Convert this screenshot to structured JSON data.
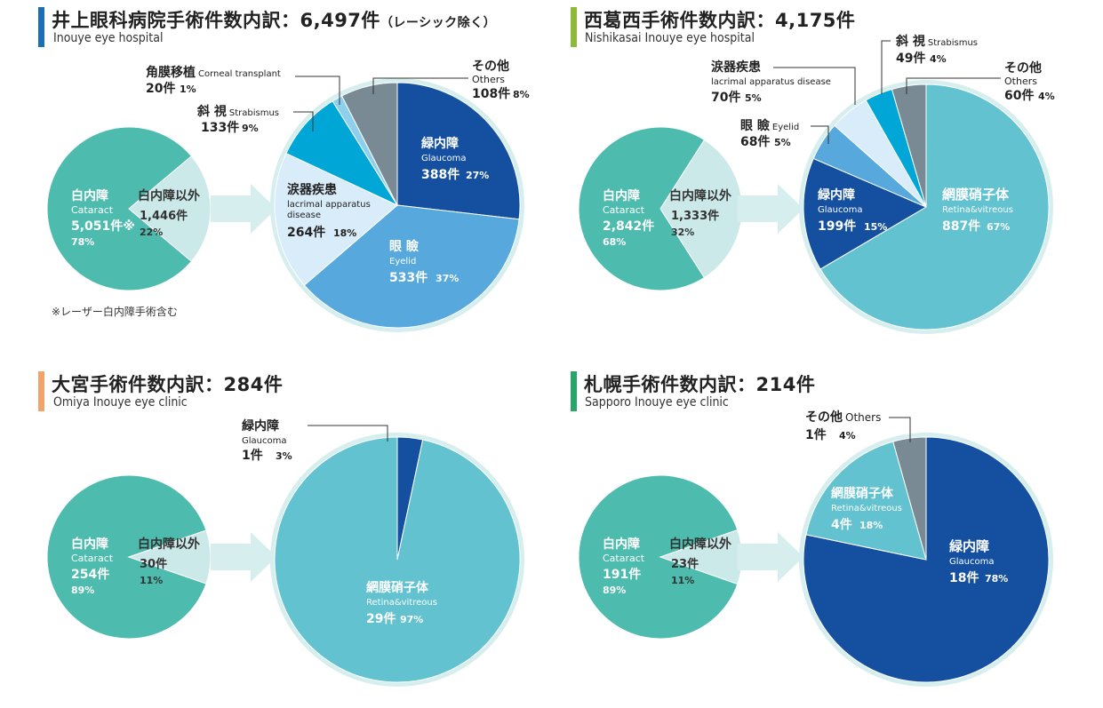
{
  "colors": {
    "cataract": "#4dbbad",
    "other_small": "#cbe9e9",
    "arrow": "#d6eeee",
    "ring": "#d6eeee",
    "glaucoma": "#1550a0",
    "eyelid": "#56a8dd",
    "lacrimal": "#d9ecfa",
    "strabismus": "#00a7d6",
    "cornea": "#8dd0ee",
    "others": "#7a8a94",
    "retina": "#62c2cf",
    "bar_inouye": "#1a6fb5",
    "bar_nishikasai": "#8dba3a",
    "bar_omiya": "#f2a36b",
    "bar_sapporo": "#2aa46a"
  },
  "panels": [
    {
      "title": "井上眼科病院手術件数内訳：6,497件",
      "title_suffix": "（レーシック除く）",
      "subtitle": "Inouye eye hospital",
      "note": "※レーザー白内障手術含む",
      "small_pie": {
        "cataract": {
          "jp": "白内障",
          "en": "Cataract",
          "count": "5,051件※",
          "pct": "78%"
        },
        "non_cataract": {
          "jp": "白内障以外",
          "count": "1,446件",
          "pct": "22%"
        }
      }
    },
    {
      "title": "西葛西手術件数内訳：4,175件",
      "title_suffix": "",
      "subtitle": "Nishikasai Inouye eye hospital",
      "note": "",
      "small_pie": {
        "cataract": {
          "jp": "白内障",
          "en": "Cataract",
          "count": "2,842件",
          "pct": "68%"
        },
        "non_cataract": {
          "jp": "白内障以外",
          "count": "1,333件",
          "pct": "32%"
        }
      }
    },
    {
      "title": "大宮手術件数内訳：284件",
      "title_suffix": "",
      "subtitle": "Omiya Inouye eye clinic",
      "note": "",
      "small_pie": {
        "cataract": {
          "jp": "白内障",
          "en": "Cataract",
          "count": "254件",
          "pct": "89%"
        },
        "non_cataract": {
          "jp": "白内障以外",
          "count": "30件",
          "pct": "11%"
        }
      }
    },
    {
      "title": "札幌手術件数内訳：214件",
      "title_suffix": "",
      "subtitle": "Sapporo Inouye eye clinic",
      "note": "",
      "small_pie": {
        "cataract": {
          "jp": "白内障",
          "en": "Cataract",
          "count": "191件",
          "pct": "89%"
        },
        "non_cataract": {
          "jp": "白内障以外",
          "count": "23件",
          "pct": "11%"
        }
      }
    }
  ],
  "chart_data": [
    {
      "type": "pie",
      "title": "井上眼科病院手術件数内訳：6,497件（レーシック除く）",
      "subtitle": "Inouye eye hospital",
      "cataract_split": [
        {
          "label": "白内障 Cataract",
          "value": 5051,
          "percent": 78
        },
        {
          "label": "白内障以外",
          "value": 1446,
          "percent": 22
        }
      ],
      "breakdown": [
        {
          "jp": "緑内障",
          "en": "Glaucoma",
          "value": 388,
          "count": "388件",
          "percent": 27,
          "pct": "27%",
          "color": "glaucoma"
        },
        {
          "jp": "眼 瞼",
          "en": "Eyelid",
          "value": 533,
          "count": "533件",
          "percent": 37,
          "pct": "37%",
          "color": "eyelid"
        },
        {
          "jp": "涙器疾患",
          "en": "lacrimal apparatus disease",
          "value": 264,
          "count": "264件",
          "percent": 18,
          "pct": "18%",
          "color": "lacrimal"
        },
        {
          "jp": "斜 視",
          "en": "Strabismus",
          "value": 133,
          "count": "133件",
          "percent": 9,
          "pct": "9%",
          "color": "strabismus"
        },
        {
          "jp": "角膜移植",
          "en": "Corneal transplant",
          "value": 20,
          "count": "20件",
          "percent": 1,
          "pct": "1%",
          "color": "cornea"
        },
        {
          "jp": "その他",
          "en": "Others",
          "value": 108,
          "count": "108件",
          "percent": 8,
          "pct": "8%",
          "color": "others"
        }
      ]
    },
    {
      "type": "pie",
      "title": "西葛西手術件数内訳：4,175件",
      "subtitle": "Nishikasai Inouye eye hospital",
      "cataract_split": [
        {
          "label": "白内障 Cataract",
          "value": 2842,
          "percent": 68
        },
        {
          "label": "白内障以外",
          "value": 1333,
          "percent": 32
        }
      ],
      "breakdown": [
        {
          "jp": "網膜硝子体",
          "en": "Retina&vitreous",
          "value": 887,
          "count": "887件",
          "percent": 67,
          "pct": "67%",
          "color": "retina"
        },
        {
          "jp": "緑内障",
          "en": "Glaucoma",
          "value": 199,
          "count": "199件",
          "percent": 15,
          "pct": "15%",
          "color": "glaucoma"
        },
        {
          "jp": "眼 瞼",
          "en": "Eyelid",
          "value": 68,
          "count": "68件",
          "percent": 5,
          "pct": "5%",
          "color": "eyelid"
        },
        {
          "jp": "涙器疾患",
          "en": "lacrimal apparatus disease",
          "value": 70,
          "count": "70件",
          "percent": 5,
          "pct": "5%",
          "color": "lacrimal"
        },
        {
          "jp": "斜 視",
          "en": "Strabismus",
          "value": 49,
          "count": "49件",
          "percent": 4,
          "pct": "4%",
          "color": "strabismus"
        },
        {
          "jp": "その他",
          "en": "Others",
          "value": 60,
          "count": "60件",
          "percent": 4,
          "pct": "4%",
          "color": "others"
        }
      ]
    },
    {
      "type": "pie",
      "title": "大宮手術件数内訳：284件",
      "subtitle": "Omiya Inouye eye clinic",
      "cataract_split": [
        {
          "label": "白内障 Cataract",
          "value": 254,
          "percent": 89
        },
        {
          "label": "白内障以外",
          "value": 30,
          "percent": 11
        }
      ],
      "breakdown": [
        {
          "jp": "網膜硝子体",
          "en": "Retina&vitreous",
          "value": 29,
          "count": "29件",
          "percent": 97,
          "pct": "97%",
          "color": "retina"
        },
        {
          "jp": "緑内障",
          "en": "Glaucoma",
          "value": 1,
          "count": "1件",
          "percent": 3,
          "pct": "3%",
          "color": "glaucoma"
        }
      ]
    },
    {
      "type": "pie",
      "title": "札幌手術件数内訳：214件",
      "subtitle": "Sapporo Inouye eye clinic",
      "cataract_split": [
        {
          "label": "白内障 Cataract",
          "value": 191,
          "percent": 89
        },
        {
          "label": "白内障以外",
          "value": 23,
          "percent": 11
        }
      ],
      "breakdown": [
        {
          "jp": "緑内障",
          "en": "Glaucoma",
          "value": 18,
          "count": "18件",
          "percent": 78,
          "pct": "78%",
          "color": "glaucoma"
        },
        {
          "jp": "網膜硝子体",
          "en": "Retina&vitreous",
          "value": 4,
          "count": "4件",
          "percent": 18,
          "pct": "18%",
          "color": "retina"
        },
        {
          "jp": "その他",
          "en": "Others",
          "value": 1,
          "count": "1件",
          "percent": 4,
          "pct": "4%",
          "color": "others"
        }
      ]
    }
  ]
}
